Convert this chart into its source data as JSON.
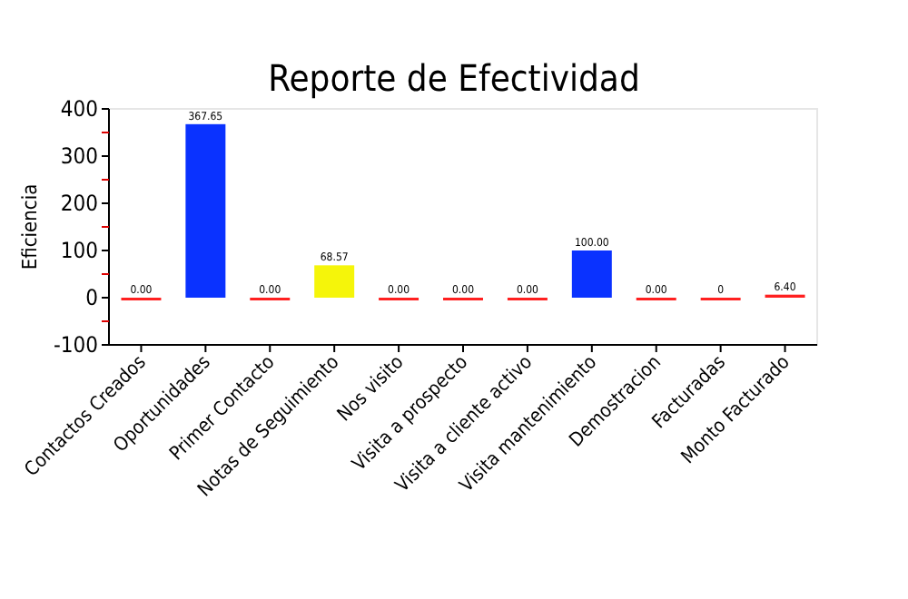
{
  "chart_data": {
    "type": "bar",
    "title": "Reporte de Efectividad",
    "ylabel": "Eficiencia",
    "categories": [
      "Contactos Creados",
      "Oportunidades",
      "Primer Contacto",
      "Notas de Seguimiento",
      "Nos visito",
      "Visita a prospecto",
      "Visita a cliente activo",
      "Visita mantenimiento",
      "Demostracion",
      "Facturadas",
      "Monto Facturado"
    ],
    "values": [
      0,
      367.65,
      0,
      68.57,
      0,
      0,
      0,
      100,
      0,
      0,
      6.4
    ],
    "colors": [
      "#ff2020",
      "#0a32ff",
      "#ff2020",
      "#f5f50a",
      "#ff2020",
      "#ff2020",
      "#ff2020",
      "#0a32ff",
      "#ff2020",
      "#ff2020",
      "#ff2020"
    ],
    "value_labels": [
      "0.00",
      "367.65",
      "0.00",
      "68.57",
      "0.00",
      "0.00",
      "0.00",
      "100.00",
      "0.00",
      "0",
      "6.40"
    ],
    "ylim": [
      -100,
      400
    ],
    "yticks": [
      -100,
      {
        "value": -50,
        "label": null
      },
      0,
      {
        "value": 50,
        "label": null
      },
      100,
      {
        "value": 150,
        "label": null
      },
      200,
      {
        "value": 250,
        "label": null
      },
      300,
      {
        "value": 350,
        "label": null
      },
      400
    ],
    "grid": false
  }
}
